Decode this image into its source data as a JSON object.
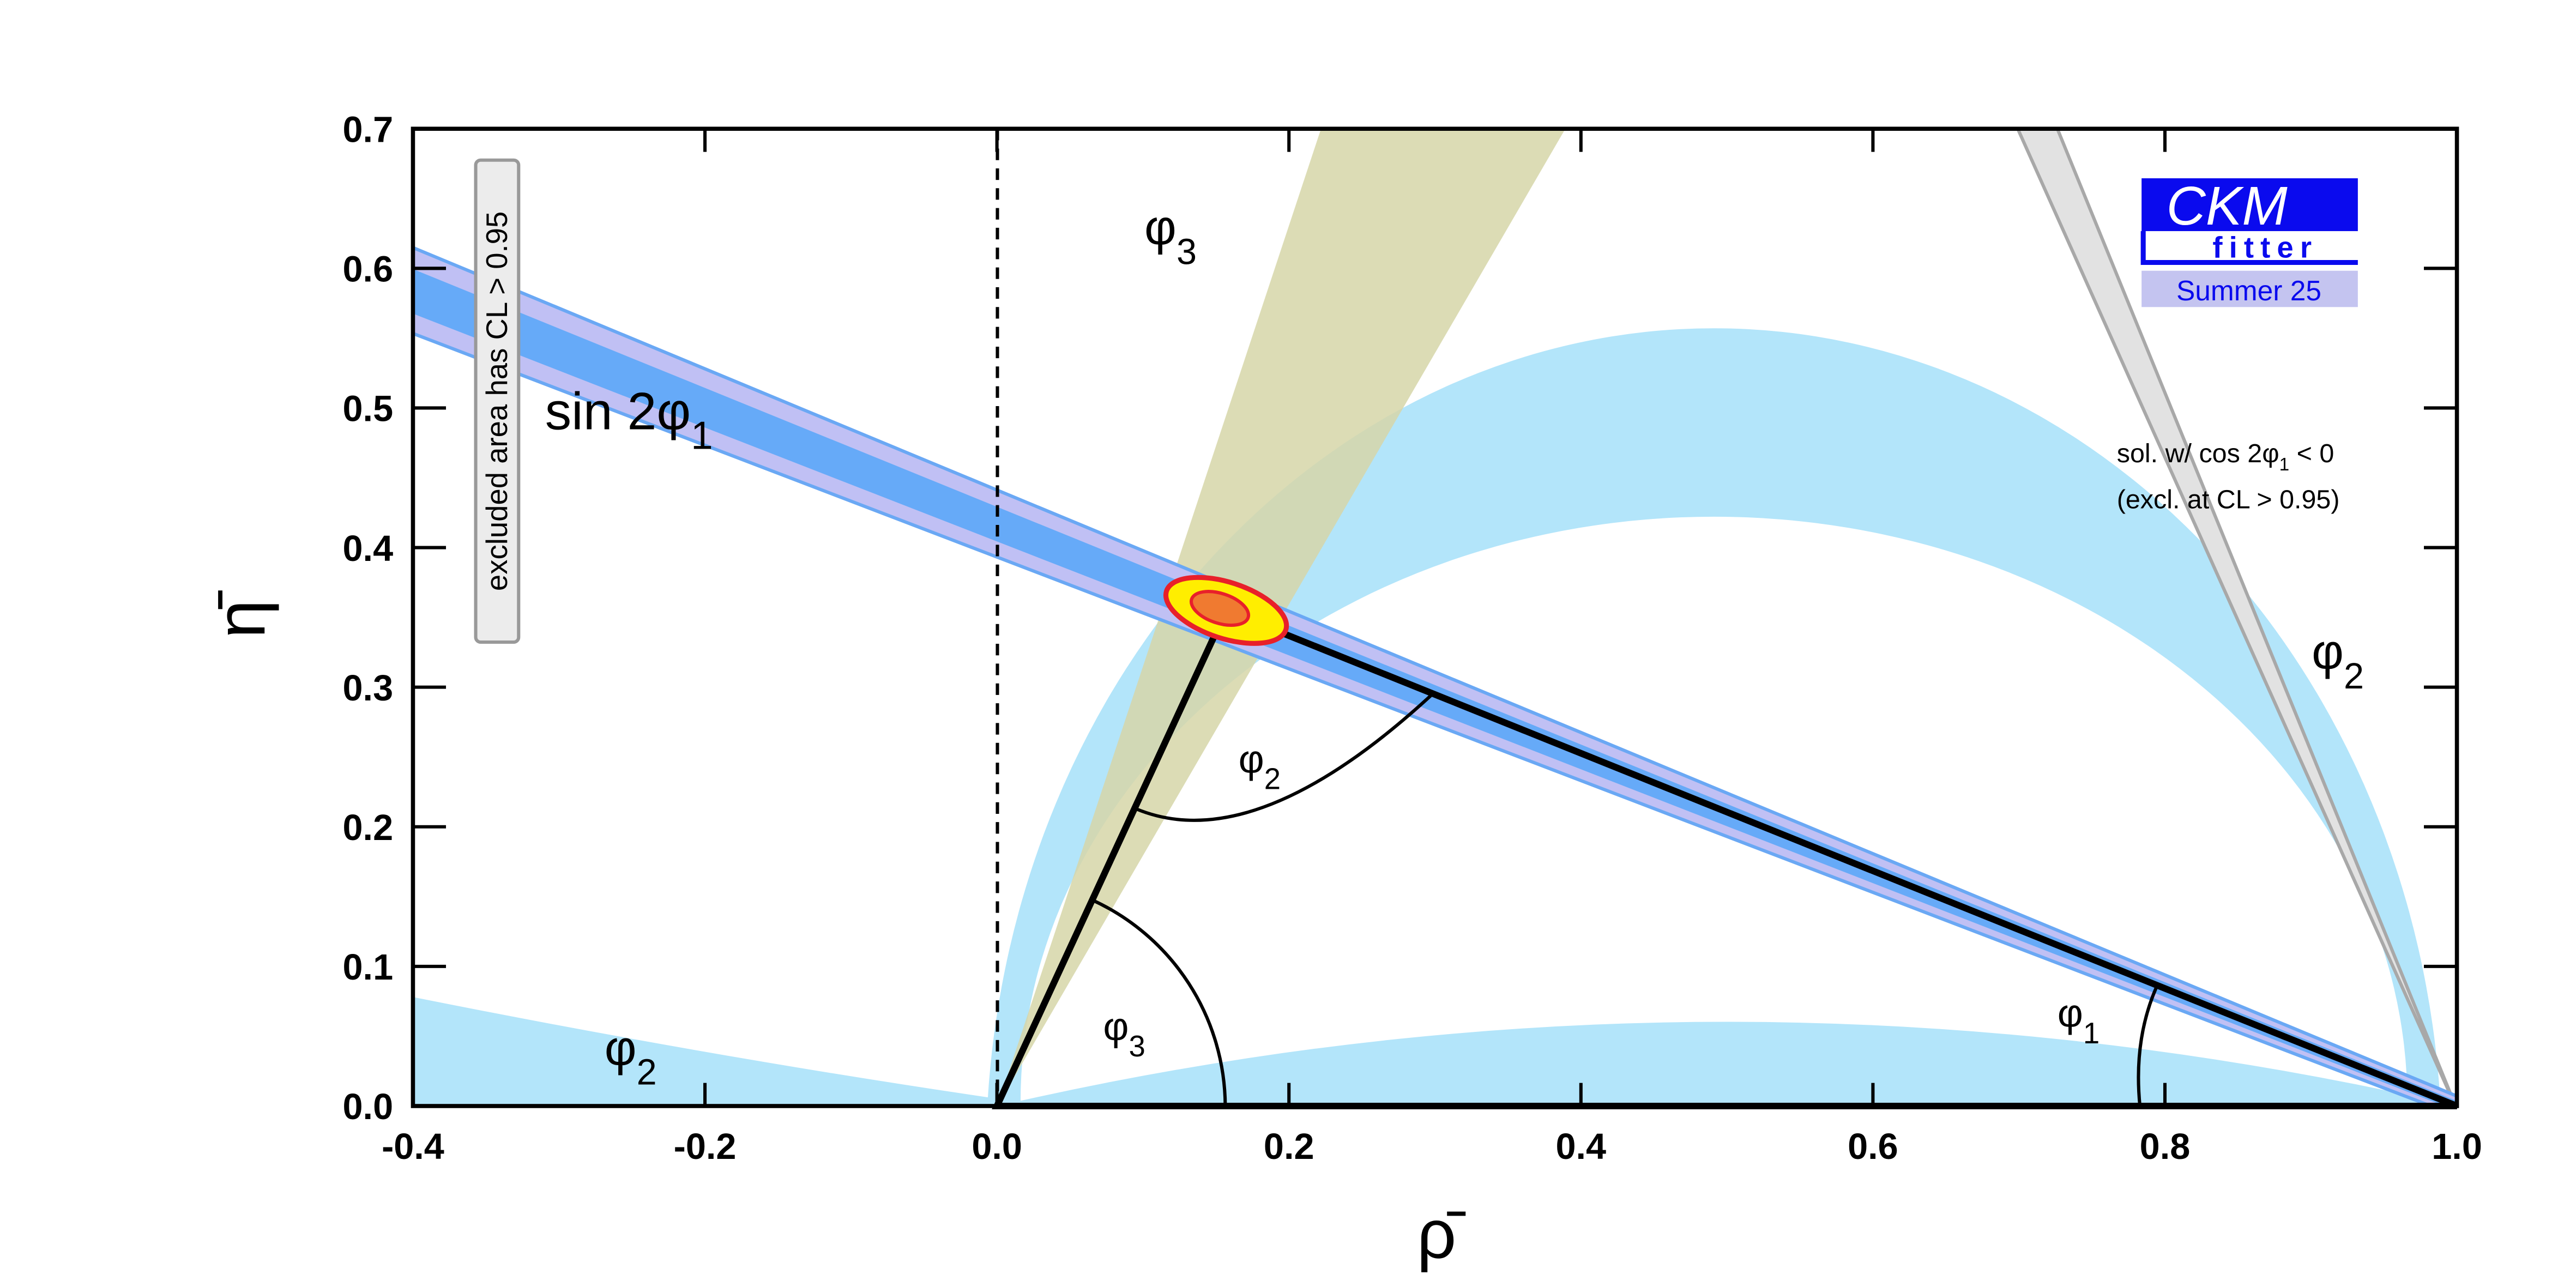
{
  "chart_data": {
    "type": "line",
    "x_label": "ρ̄",
    "y_label": "η̄",
    "x": [
      0,
      0.157,
      1
    ],
    "values": [
      0,
      0.355,
      0
    ],
    "xlim": [
      -0.4,
      1.0
    ],
    "ylim": [
      0,
      0.7
    ],
    "xticks": [
      -0.4,
      -0.2,
      {
        "value": 0,
        "label": "0.0"
      },
      0.2,
      0.4,
      0.6,
      0.8,
      {
        "value": 1,
        "label": "1.0"
      }
    ],
    "yticks": [
      {
        "value": 0,
        "label": "0.0"
      },
      0.1,
      0.2,
      0.3,
      0.4,
      0.5,
      0.6,
      0.7
    ],
    "annotations": [
      {
        "text": "φ",
        "sub": "3"
      },
      {
        "text": "sin 2φ",
        "sub": "1"
      },
      {
        "text": "φ",
        "sub": "2"
      },
      {
        "text": "φ",
        "sub": "3"
      },
      {
        "text": "φ",
        "sub": "1"
      },
      {
        "text": "φ",
        "sub": "2"
      },
      {
        "text": "φ",
        "sub": "2"
      },
      {
        "text": "sol. w/ cos 2φ",
        "sub": "1",
        "after": " < 0"
      },
      {
        "text": "(excl. at CL > 0.95)"
      },
      {
        "text": "excluded area has CL > 0.95"
      }
    ],
    "logo": {
      "title": "CKM",
      "subtitle": "fitter",
      "edition": "Summer 25"
    }
  }
}
